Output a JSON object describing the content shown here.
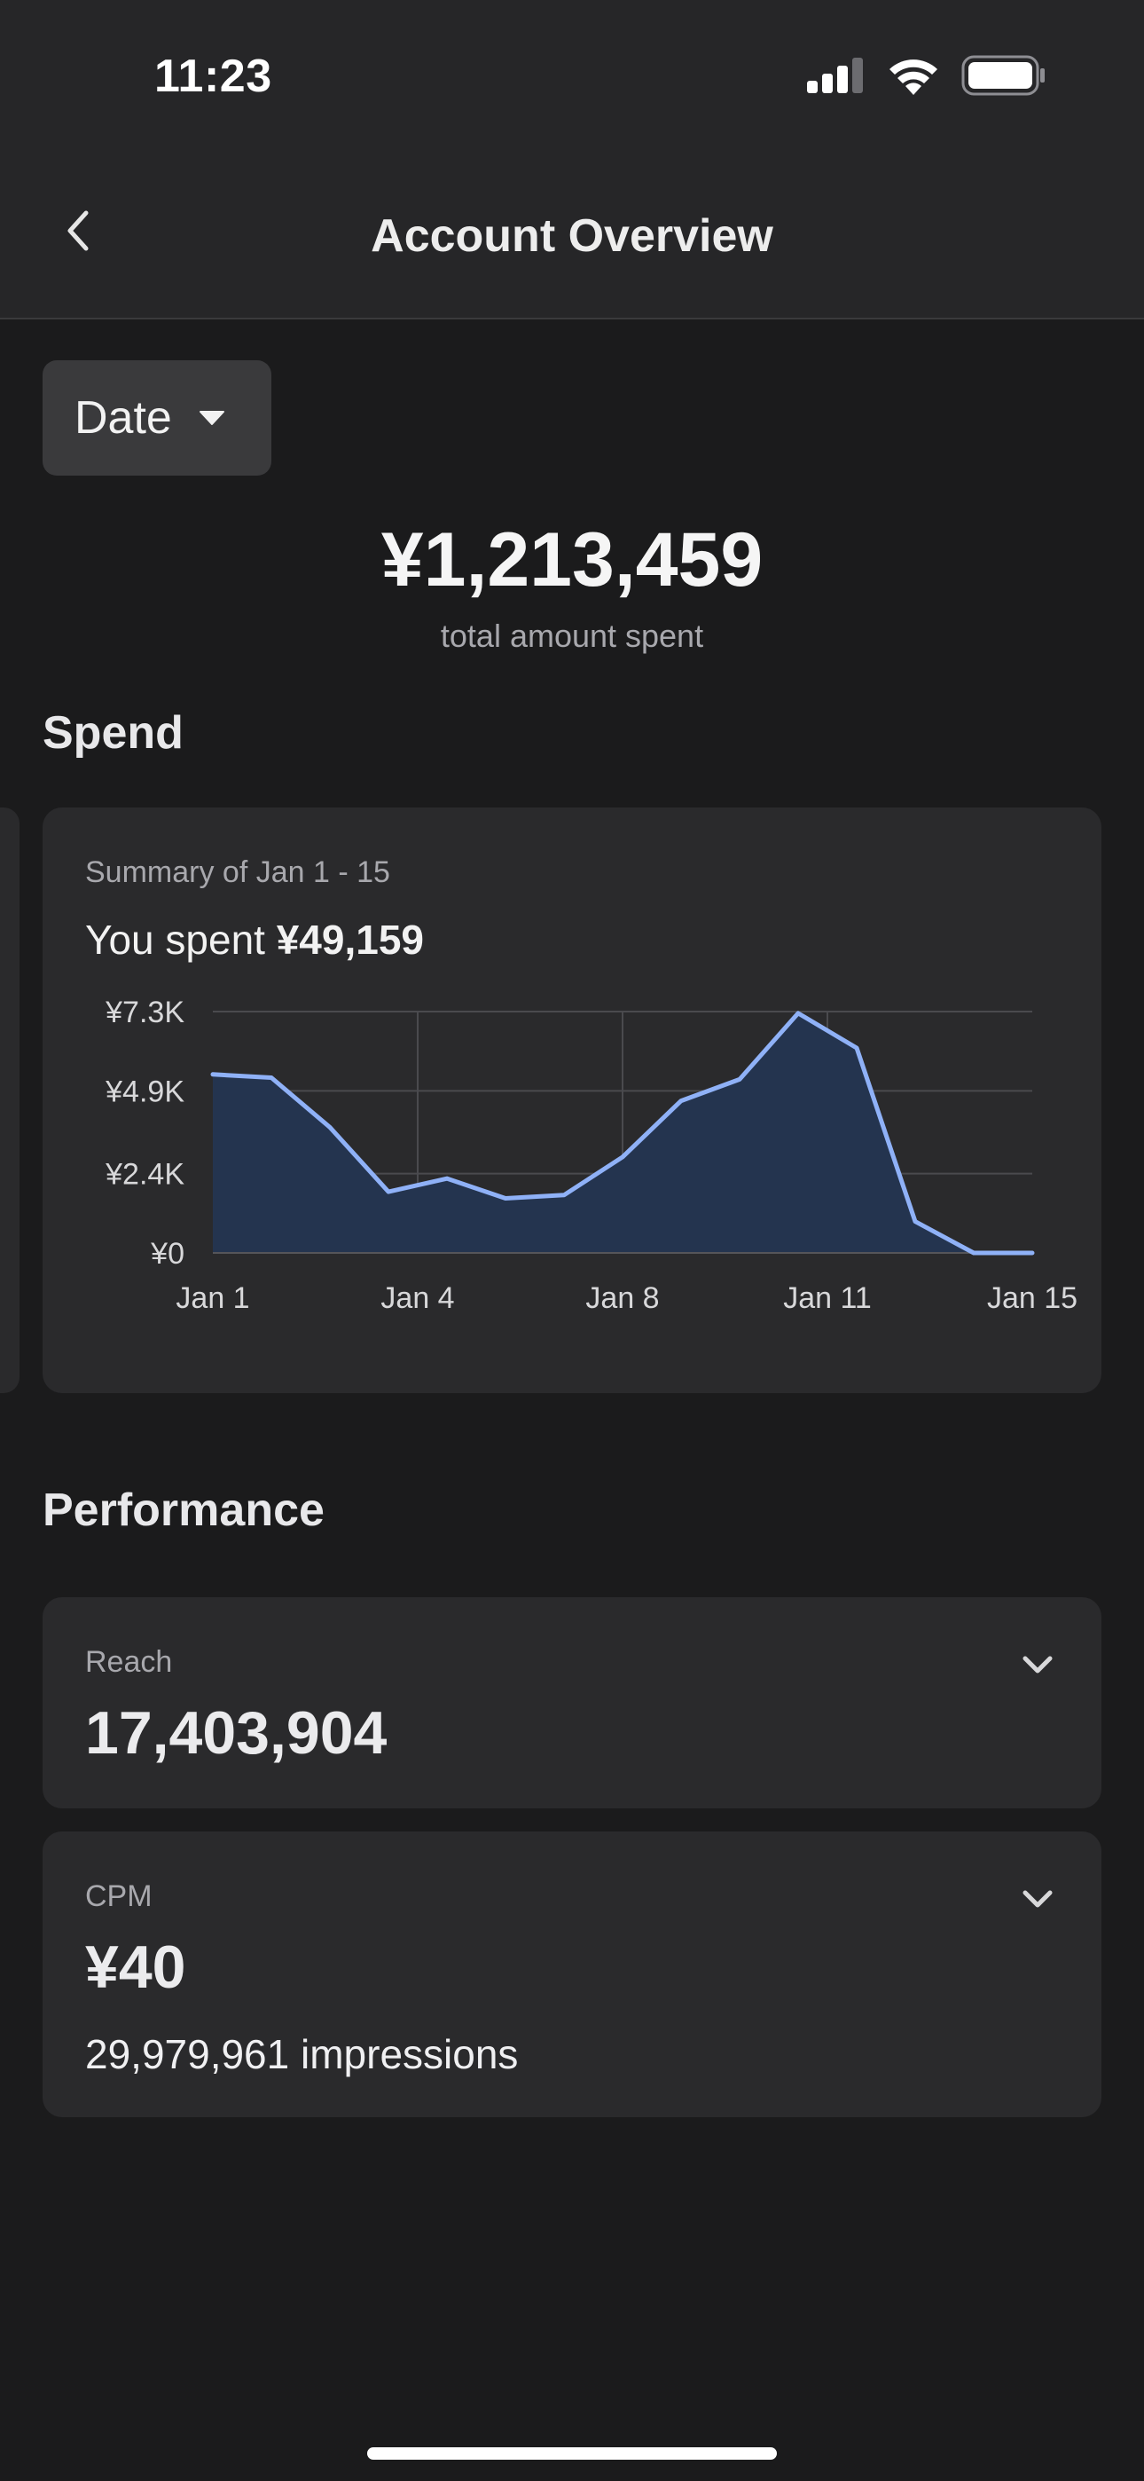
{
  "status": {
    "time": "11:23"
  },
  "nav": {
    "title": "Account Overview",
    "back_icon": "chevron-left-icon"
  },
  "filter": {
    "label": "Date",
    "icon": "caret-down-icon"
  },
  "totals": {
    "amount": "¥1,213,459",
    "label": "total amount spent"
  },
  "spend": {
    "section_title": "Spend",
    "summary_label": "Summary of Jan 1 - 15",
    "spent_prefix": "You spent",
    "spent_amount": "¥49,159"
  },
  "chart_data": {
    "type": "area",
    "x": [
      1,
      2,
      3,
      4,
      5,
      6,
      7,
      8,
      9,
      10,
      11,
      12,
      13,
      14,
      15
    ],
    "x_ticks": [
      {
        "x": 1,
        "label": "Jan 1"
      },
      {
        "x": 4.5,
        "label": "Jan 4"
      },
      {
        "x": 8,
        "label": "Jan 8"
      },
      {
        "x": 11.5,
        "label": "Jan 11"
      },
      {
        "x": 15,
        "label": "Jan 15"
      }
    ],
    "y_ticks": [
      {
        "value": 0,
        "label": "¥0"
      },
      {
        "value": 2400,
        "label": "¥2.4K"
      },
      {
        "value": 4900,
        "label": "¥4.9K"
      },
      {
        "value": 7300,
        "label": "¥7.3K"
      }
    ],
    "values": [
      5400,
      5300,
      3800,
      1850,
      2250,
      1650,
      1750,
      2900,
      4600,
      5250,
      7250,
      6200,
      950,
      0,
      0
    ],
    "ylim": [
      0,
      7300
    ],
    "grid": true,
    "line_color": "#8fb1f7",
    "fill_color": "#24344f"
  },
  "performance": {
    "section_title": "Performance",
    "reach": {
      "label": "Reach",
      "value": "17,403,904",
      "icon": "chevron-down-icon"
    },
    "cpm": {
      "label": "CPM",
      "value": "¥40",
      "sub": "29,979,961 impressions",
      "icon": "chevron-down-icon"
    }
  }
}
